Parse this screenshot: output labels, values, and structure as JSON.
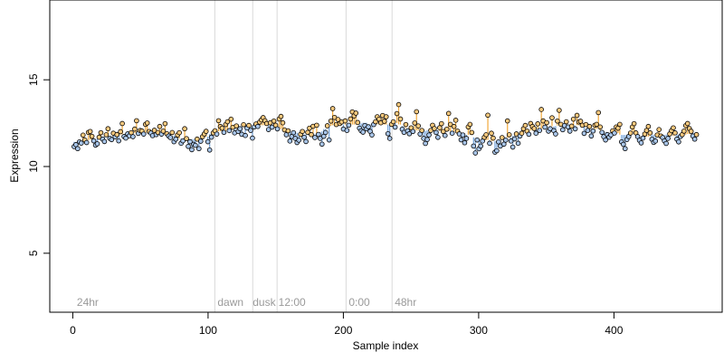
{
  "colors": {
    "stem_above": "#f2a93b",
    "stem_below": "#6f9fd8",
    "point_above": "#f7c97e",
    "point_below": "#a9c6ea",
    "point_stroke": "#000000",
    "divider": "#d9d9d9",
    "region_text": "#9a9a9a"
  },
  "chart_data": {
    "type": "scatter",
    "title": "",
    "xlabel": "Sample index",
    "ylabel": "Expression",
    "xlim": [
      -17,
      480
    ],
    "ylim": [
      1.6,
      19.6
    ],
    "xticks": [
      0,
      100,
      200,
      300,
      400
    ],
    "yticks": [
      5,
      10,
      15
    ],
    "grid": false,
    "baseline_type": "rolling median (stems drawn from baseline to each point)",
    "region_boundaries": [
      105,
      133,
      151,
      202,
      236
    ],
    "region_labels": [
      {
        "x": 3,
        "text": "24hr"
      },
      {
        "x": 107,
        "text": "dawn"
      },
      {
        "x": 133,
        "text": "dusk"
      },
      {
        "x": 152,
        "text": "12:00"
      },
      {
        "x": 204,
        "text": "0:00"
      },
      {
        "x": 238,
        "text": "48hr"
      }
    ],
    "series": [
      {
        "y": [
          11.15,
          11.26,
          11.03,
          11.42,
          11.35,
          11.81,
          11.53,
          11.38,
          11.97,
          12.02,
          11.74,
          11.48,
          11.23,
          11.31,
          11.69,
          11.95,
          11.58,
          11.44,
          11.83,
          12.18,
          11.62,
          11.55,
          11.92,
          11.71,
          11.84,
          11.48,
          12.01,
          12.48,
          11.73,
          11.64,
          11.88,
          11.77,
          11.95,
          11.72,
          12.16,
          12.64,
          11.91,
          12.08,
          12.05,
          11.87,
          12.43,
          12.51,
          12.02,
          11.93,
          11.78,
          12.09,
          11.84,
          11.96,
          12.31,
          11.87,
          12.04,
          12.47,
          11.89,
          11.76,
          11.67,
          11.96,
          11.43,
          11.58,
          11.82,
          11.95,
          11.34,
          11.48,
          12.18,
          11.61,
          11.16,
          11.43,
          10.97,
          11.28,
          11.22,
          11.58,
          11.03,
          11.46,
          11.72,
          11.88,
          12.03,
          11.43,
          10.95,
          11.69,
          11.94,
          12.06,
          11.87,
          12.64,
          12.31,
          12.21,
          11.97,
          12.42,
          12.58,
          12.07,
          12.73,
          12.26,
          11.94,
          12.34,
          12.03,
          12.18,
          11.86,
          12.41,
          11.79,
          12.22,
          12.37,
          12.08,
          11.64,
          12.28,
          12.45,
          12.31,
          12.56,
          12.69,
          12.82,
          12.64,
          12.48,
          12.13,
          12.52,
          12.27,
          12.62,
          12.38,
          12.17,
          12.74,
          12.89,
          12.52,
          12.11,
          11.83,
          12.06,
          11.47,
          11.73,
          11.95,
          11.62,
          11.38,
          11.52,
          11.85,
          12.02,
          11.68,
          11.44,
          11.97,
          12.21,
          11.84,
          12.32,
          11.67,
          12.38,
          11.85,
          11.62,
          11.29,
          11.74,
          11.96,
          12.35,
          11.53,
          12.62,
          13.34,
          12.83,
          12.42,
          12.71,
          12.48,
          12.57,
          12.16,
          12.63,
          12.08,
          12.38,
          12.74,
          13.15,
          12.92,
          13.08,
          12.54,
          12.21,
          12.06,
          11.98,
          12.36,
          12.17,
          12.29,
          12.03,
          11.82,
          12.42,
          12.58,
          12.87,
          12.73,
          12.52,
          12.94,
          12.61,
          12.87,
          11.89,
          11.62,
          12.43,
          12.58,
          12.27,
          13.05,
          13.57,
          12.74,
          12.15,
          11.97,
          12.42,
          12.06,
          11.89,
          12.23,
          12.02,
          12.51,
          13.16,
          12.34,
          11.87,
          12.08,
          11.62,
          11.33,
          11.56,
          11.82,
          12.08,
          12.38,
          12.19,
          11.96,
          11.68,
          12.24,
          12.47,
          12.02,
          11.79,
          12.15,
          13.06,
          12.43,
          11.92,
          12.31,
          12.67,
          12.04,
          11.88,
          11.54,
          11.82,
          11.37,
          11.62,
          12.28,
          12.43,
          11.96,
          11.18,
          10.78,
          11.53,
          11.02,
          11.18,
          11.47,
          11.68,
          11.83,
          12.96,
          11.34,
          11.92,
          11.64,
          10.83,
          10.91,
          11.42,
          11.18,
          11.67,
          11.29,
          11.52,
          12.63,
          11.83,
          11.47,
          11.12,
          11.59,
          11.88,
          11.34,
          11.76,
          11.92,
          12.18,
          12.37,
          12.04,
          11.86,
          12.48,
          12.31,
          12.19,
          11.92,
          12.46,
          12.08,
          13.29,
          12.63,
          12.27,
          12.53,
          12.04,
          12.18,
          12.81,
          12.07,
          11.88,
          12.62,
          13.24,
          12.43,
          12.12,
          12.36,
          12.58,
          12.28,
          12.04,
          12.33,
          12.73,
          12.17,
          12.95,
          12.57,
          12.61,
          12.38,
          11.91,
          12.42,
          12.08,
          12.31,
          11.76,
          12.05,
          12.38,
          12.43,
          13.11,
          12.28,
          11.97,
          11.72,
          11.53,
          11.84,
          11.69,
          11.82,
          12.06,
          11.93,
          12.28,
          12.21,
          12.43,
          11.42,
          11.28,
          11.03,
          11.56,
          11.73,
          11.93,
          12.28,
          12.47,
          11.94,
          11.73,
          11.51,
          11.36,
          11.64,
          11.87,
          12.08,
          12.31,
          11.94,
          11.57,
          11.39,
          11.47,
          11.82,
          12.13,
          11.76,
          11.67,
          11.48,
          11.33,
          11.62,
          11.88,
          12.07,
          12.23,
          11.94,
          11.58,
          11.42,
          11.73,
          11.84,
          12.04,
          12.36,
          12.48,
          12.19,
          12.03,
          11.76,
          11.58,
          11.84
        ]
      }
    ]
  }
}
